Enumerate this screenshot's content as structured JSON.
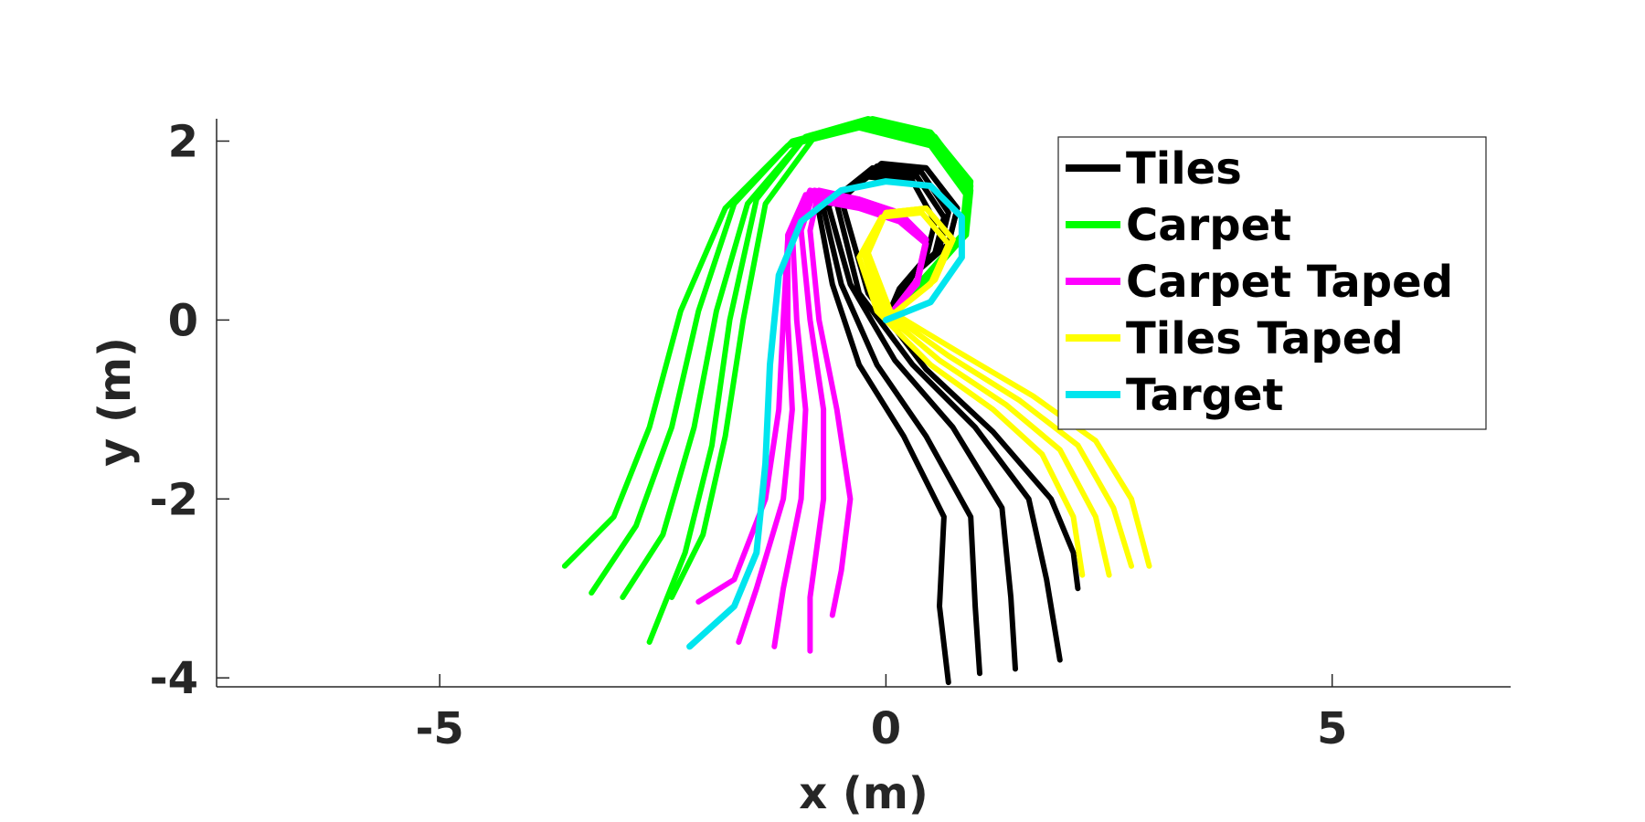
{
  "chart_data": {
    "type": "line",
    "title": "",
    "xlabel": "x (m)",
    "ylabel": "y (m)",
    "xlim": [
      -7.5,
      7
    ],
    "ylim": [
      -4.1,
      2.25
    ],
    "xticks": [
      -5,
      0,
      5
    ],
    "yticks": [
      2,
      0,
      -2,
      -4
    ],
    "xtick_labels": [
      "-5",
      "0",
      "5"
    ],
    "ytick_labels": [
      "2",
      "0",
      "-2",
      "-4"
    ],
    "grid": false,
    "legend_position": "top-right",
    "series": [
      {
        "name": "Tiles",
        "color": "#000000",
        "trajectories": [
          [
            [
              0.0,
              0.0
            ],
            [
              0.15,
              0.35
            ],
            [
              0.45,
              0.7
            ],
            [
              0.55,
              1.1
            ],
            [
              0.3,
              1.55
            ],
            [
              -0.2,
              1.6
            ],
            [
              -0.75,
              1.2
            ],
            [
              -0.6,
              0.4
            ],
            [
              -0.3,
              -0.5
            ],
            [
              0.2,
              -1.3
            ],
            [
              0.65,
              -2.2
            ],
            [
              0.6,
              -3.2
            ],
            [
              0.7,
              -4.05
            ]
          ],
          [
            [
              0.0,
              0.0
            ],
            [
              0.2,
              0.4
            ],
            [
              0.55,
              0.75
            ],
            [
              0.65,
              1.15
            ],
            [
              0.35,
              1.6
            ],
            [
              -0.2,
              1.65
            ],
            [
              -0.7,
              1.25
            ],
            [
              -0.5,
              0.4
            ],
            [
              -0.1,
              -0.5
            ],
            [
              0.45,
              -1.3
            ],
            [
              0.95,
              -2.2
            ],
            [
              1.0,
              -3.2
            ],
            [
              1.05,
              -3.95
            ]
          ],
          [
            [
              0.0,
              0.0
            ],
            [
              0.25,
              0.45
            ],
            [
              0.6,
              0.8
            ],
            [
              0.7,
              1.2
            ],
            [
              0.4,
              1.65
            ],
            [
              -0.15,
              1.7
            ],
            [
              -0.65,
              1.3
            ],
            [
              -0.4,
              0.4
            ],
            [
              0.1,
              -0.45
            ],
            [
              0.75,
              -1.2
            ],
            [
              1.3,
              -2.1
            ],
            [
              1.4,
              -3.1
            ],
            [
              1.45,
              -3.9
            ]
          ],
          [
            [
              0.0,
              0.0
            ],
            [
              0.3,
              0.5
            ],
            [
              0.7,
              0.85
            ],
            [
              0.8,
              1.25
            ],
            [
              0.45,
              1.7
            ],
            [
              -0.1,
              1.72
            ],
            [
              -0.55,
              1.3
            ],
            [
              -0.3,
              0.3
            ],
            [
              0.3,
              -0.5
            ],
            [
              1.0,
              -1.2
            ],
            [
              1.6,
              -2.0
            ],
            [
              1.8,
              -2.9
            ],
            [
              1.95,
              -3.8
            ]
          ],
          [
            [
              0.0,
              0.0
            ],
            [
              0.3,
              0.5
            ],
            [
              0.7,
              0.85
            ],
            [
              0.8,
              1.25
            ],
            [
              0.45,
              1.7
            ],
            [
              -0.05,
              1.75
            ],
            [
              -0.5,
              1.35
            ],
            [
              -0.2,
              0.3
            ],
            [
              0.45,
              -0.55
            ],
            [
              1.2,
              -1.25
            ],
            [
              1.85,
              -2.0
            ],
            [
              2.1,
              -2.6
            ],
            [
              2.15,
              -3.0
            ]
          ]
        ]
      },
      {
        "name": "Carpet",
        "color": "#00ff00",
        "trajectories": [
          [
            [
              0.0,
              0.0
            ],
            [
              0.45,
              0.45
            ],
            [
              0.85,
              0.9
            ],
            [
              0.9,
              1.4
            ],
            [
              0.5,
              1.95
            ],
            [
              -0.3,
              2.15
            ],
            [
              -1.1,
              1.95
            ],
            [
              -1.8,
              1.25
            ],
            [
              -2.3,
              0.1
            ],
            [
              -2.65,
              -1.2
            ],
            [
              -3.05,
              -2.2
            ],
            [
              -3.6,
              -2.75
            ]
          ],
          [
            [
              0.0,
              0.0
            ],
            [
              0.45,
              0.5
            ],
            [
              0.85,
              0.95
            ],
            [
              0.9,
              1.45
            ],
            [
              0.5,
              2.0
            ],
            [
              -0.3,
              2.2
            ],
            [
              -1.05,
              2.0
            ],
            [
              -1.7,
              1.3
            ],
            [
              -2.1,
              0.1
            ],
            [
              -2.4,
              -1.2
            ],
            [
              -2.8,
              -2.3
            ],
            [
              -3.3,
              -3.05
            ]
          ],
          [
            [
              0.0,
              0.0
            ],
            [
              0.45,
              0.5
            ],
            [
              0.9,
              0.95
            ],
            [
              0.95,
              1.45
            ],
            [
              0.55,
              2.0
            ],
            [
              -0.2,
              2.2
            ],
            [
              -0.95,
              2.0
            ],
            [
              -1.55,
              1.3
            ],
            [
              -1.9,
              0.1
            ],
            [
              -2.15,
              -1.2
            ],
            [
              -2.5,
              -2.4
            ],
            [
              -2.95,
              -3.1
            ]
          ],
          [
            [
              0.0,
              0.0
            ],
            [
              0.5,
              0.5
            ],
            [
              0.9,
              1.0
            ],
            [
              0.95,
              1.5
            ],
            [
              0.55,
              2.05
            ],
            [
              -0.2,
              2.25
            ],
            [
              -0.9,
              2.05
            ],
            [
              -1.45,
              1.35
            ],
            [
              -1.75,
              0.0
            ],
            [
              -1.95,
              -1.4
            ],
            [
              -2.25,
              -2.6
            ],
            [
              -2.65,
              -3.6
            ]
          ],
          [
            [
              0.0,
              0.0
            ],
            [
              0.5,
              0.55
            ],
            [
              0.9,
              1.0
            ],
            [
              0.95,
              1.55
            ],
            [
              0.5,
              2.1
            ],
            [
              -0.15,
              2.25
            ],
            [
              -0.8,
              2.05
            ],
            [
              -1.35,
              1.3
            ],
            [
              -1.6,
              0.0
            ],
            [
              -1.8,
              -1.3
            ],
            [
              -2.05,
              -2.4
            ],
            [
              -2.4,
              -3.1
            ]
          ]
        ]
      },
      {
        "name": "Carpet Taped",
        "color": "#ff00ff",
        "trajectories": [
          [
            [
              0.0,
              0.0
            ],
            [
              0.35,
              0.4
            ],
            [
              0.45,
              0.85
            ],
            [
              0.15,
              1.1
            ],
            [
              -0.3,
              1.25
            ],
            [
              -0.85,
              1.35
            ],
            [
              -1.1,
              0.9
            ],
            [
              -1.15,
              0.0
            ],
            [
              -1.2,
              -1.0
            ],
            [
              -1.35,
              -2.0
            ],
            [
              -1.7,
              -2.9
            ],
            [
              -2.1,
              -3.15
            ]
          ],
          [
            [
              0.0,
              0.0
            ],
            [
              0.35,
              0.45
            ],
            [
              0.45,
              0.9
            ],
            [
              0.15,
              1.15
            ],
            [
              -0.35,
              1.3
            ],
            [
              -0.9,
              1.4
            ],
            [
              -1.1,
              0.95
            ],
            [
              -1.1,
              0.0
            ],
            [
              -1.05,
              -1.0
            ],
            [
              -1.15,
              -2.0
            ],
            [
              -1.45,
              -3.0
            ],
            [
              -1.65,
              -3.6
            ]
          ],
          [
            [
              0.0,
              0.0
            ],
            [
              0.35,
              0.45
            ],
            [
              0.45,
              0.9
            ],
            [
              0.15,
              1.2
            ],
            [
              -0.35,
              1.35
            ],
            [
              -0.85,
              1.45
            ],
            [
              -1.05,
              1.0
            ],
            [
              -1.0,
              0.0
            ],
            [
              -0.9,
              -1.0
            ],
            [
              -0.95,
              -2.0
            ],
            [
              -1.15,
              -3.0
            ],
            [
              -1.25,
              -3.65
            ]
          ],
          [
            [
              0.0,
              0.0
            ],
            [
              0.35,
              0.45
            ],
            [
              0.45,
              0.9
            ],
            [
              0.15,
              1.2
            ],
            [
              -0.3,
              1.35
            ],
            [
              -0.8,
              1.45
            ],
            [
              -0.95,
              1.0
            ],
            [
              -0.85,
              0.0
            ],
            [
              -0.7,
              -1.0
            ],
            [
              -0.7,
              -2.0
            ],
            [
              -0.85,
              -3.1
            ],
            [
              -0.85,
              -3.7
            ]
          ],
          [
            [
              0.0,
              0.0
            ],
            [
              0.35,
              0.45
            ],
            [
              0.45,
              0.9
            ],
            [
              0.15,
              1.2
            ],
            [
              -0.3,
              1.35
            ],
            [
              -0.75,
              1.45
            ],
            [
              -0.85,
              1.0
            ],
            [
              -0.75,
              0.0
            ],
            [
              -0.55,
              -1.0
            ],
            [
              -0.4,
              -2.0
            ],
            [
              -0.5,
              -2.8
            ],
            [
              -0.6,
              -3.3
            ]
          ]
        ]
      },
      {
        "name": "Tiles Taped",
        "color": "#ffff00",
        "trajectories": [
          [
            [
              0.0,
              0.0
            ],
            [
              0.5,
              0.4
            ],
            [
              0.7,
              0.85
            ],
            [
              0.4,
              1.2
            ],
            [
              -0.05,
              1.15
            ],
            [
              -0.3,
              0.7
            ],
            [
              -0.1,
              0.1
            ],
            [
              0.5,
              -0.5
            ],
            [
              1.2,
              -1.0
            ],
            [
              1.75,
              -1.5
            ],
            [
              2.1,
              -2.2
            ],
            [
              2.2,
              -2.85
            ]
          ],
          [
            [
              0.0,
              0.0
            ],
            [
              0.55,
              0.45
            ],
            [
              0.75,
              0.9
            ],
            [
              0.45,
              1.25
            ],
            [
              0.0,
              1.2
            ],
            [
              -0.25,
              0.75
            ],
            [
              -0.05,
              0.1
            ],
            [
              0.6,
              -0.45
            ],
            [
              1.35,
              -0.95
            ],
            [
              1.95,
              -1.45
            ],
            [
              2.35,
              -2.2
            ],
            [
              2.5,
              -2.85
            ]
          ],
          [
            [
              0.0,
              0.0
            ],
            [
              0.55,
              0.45
            ],
            [
              0.75,
              0.9
            ],
            [
              0.45,
              1.25
            ],
            [
              0.0,
              1.2
            ],
            [
              -0.25,
              0.75
            ],
            [
              0.0,
              0.1
            ],
            [
              0.7,
              -0.4
            ],
            [
              1.5,
              -0.9
            ],
            [
              2.15,
              -1.4
            ],
            [
              2.55,
              -2.1
            ],
            [
              2.75,
              -2.75
            ]
          ],
          [
            [
              0.0,
              0.0
            ],
            [
              0.55,
              0.45
            ],
            [
              0.75,
              0.9
            ],
            [
              0.45,
              1.25
            ],
            [
              0.0,
              1.2
            ],
            [
              -0.2,
              0.75
            ],
            [
              0.05,
              0.1
            ],
            [
              0.8,
              -0.35
            ],
            [
              1.65,
              -0.85
            ],
            [
              2.35,
              -1.35
            ],
            [
              2.75,
              -2.0
            ],
            [
              2.95,
              -2.75
            ]
          ]
        ]
      },
      {
        "name": "Target",
        "color": "#00e5ee",
        "trajectories": [
          [
            [
              0.0,
              0.0
            ],
            [
              0.5,
              0.2
            ],
            [
              0.85,
              0.7
            ],
            [
              0.85,
              1.15
            ],
            [
              0.5,
              1.5
            ],
            [
              0.0,
              1.55
            ],
            [
              -0.5,
              1.45
            ],
            [
              -0.95,
              1.1
            ],
            [
              -1.2,
              0.5
            ],
            [
              -1.3,
              -0.5
            ],
            [
              -1.35,
              -1.6
            ],
            [
              -1.45,
              -2.6
            ],
            [
              -1.7,
              -3.2
            ],
            [
              -2.2,
              -3.65
            ]
          ]
        ]
      }
    ]
  }
}
